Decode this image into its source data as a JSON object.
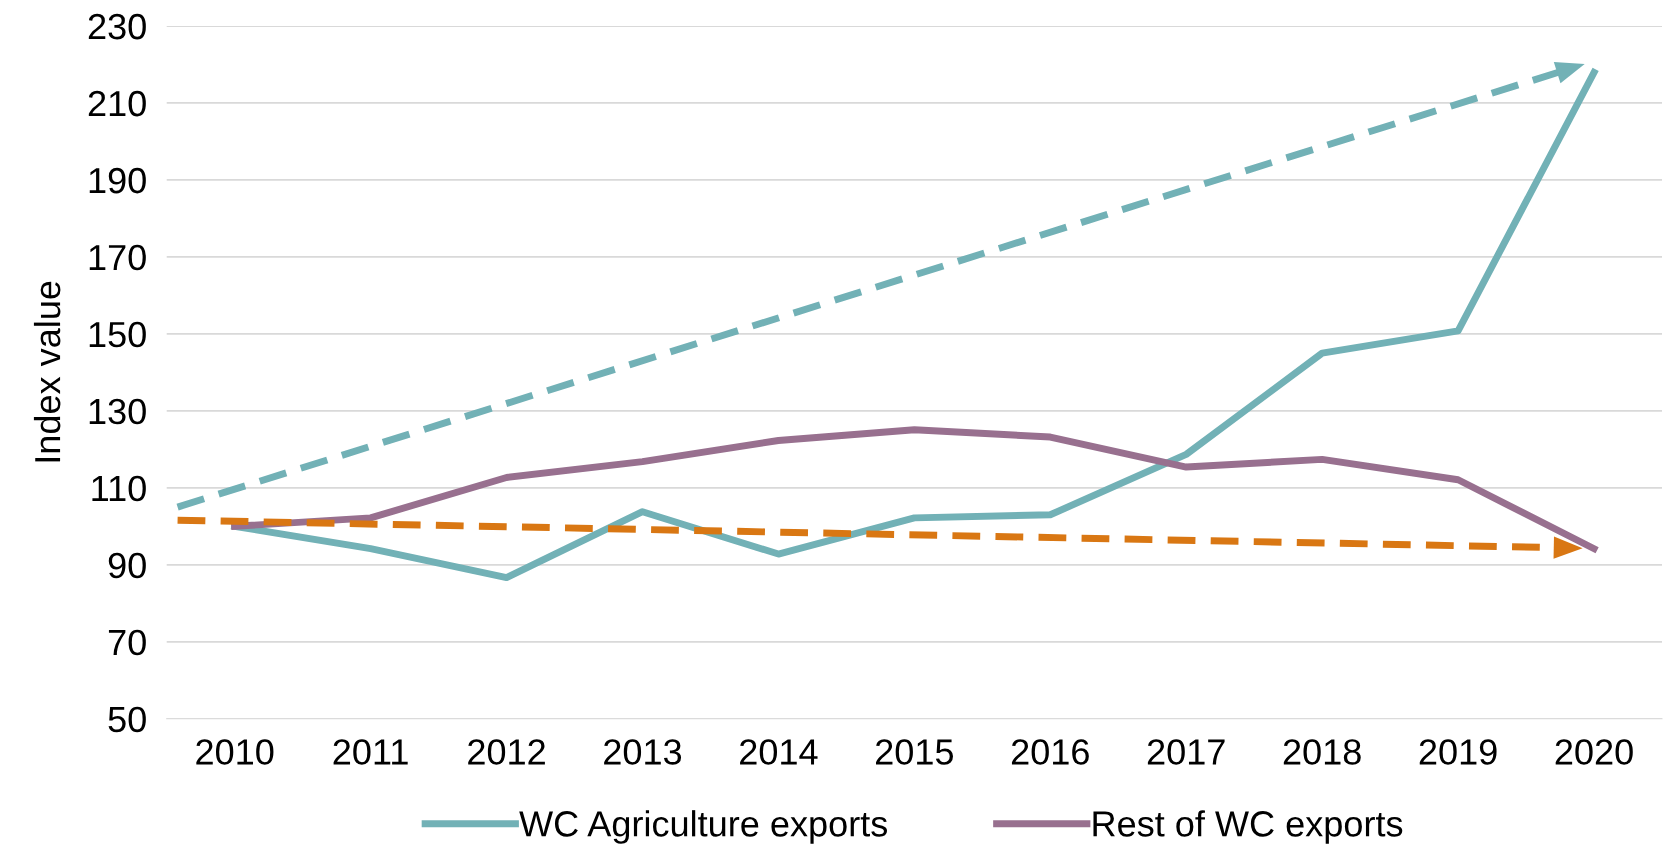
{
  "chart_data": {
    "type": "line",
    "ylabel": "Index value",
    "x": [
      2010,
      2011,
      2012,
      2013,
      2014,
      2015,
      2016,
      2017,
      2018,
      2019,
      2020
    ],
    "xlim": [
      2009.5,
      2020.5
    ],
    "xticks": [
      2010,
      2011,
      2012,
      2013,
      2014,
      2015,
      2016,
      2017,
      2018,
      2019,
      2020
    ],
    "ylim": [
      50,
      230
    ],
    "yticks": [
      50,
      70,
      90,
      110,
      130,
      150,
      170,
      190,
      210,
      230
    ],
    "grid": "y",
    "legend": "bottom",
    "marker": "none",
    "series": [
      {
        "name": "WC Agriculture exports",
        "color": "#72b1b6",
        "values": [
          100,
          94.2,
          86.7,
          103.8,
          92.8,
          102.2,
          103,
          118.7,
          145,
          150.8,
          217.9
        ]
      },
      {
        "name": "Rest of WC exports",
        "color": "#98708f",
        "values": [
          100,
          102.2,
          112.7,
          116.8,
          122.3,
          125.1,
          123.2,
          115.4,
          117.4,
          112.1,
          94.2
        ]
      },
      {
        "type": "line",
        "line_style": "dashed",
        "marker": "triangle",
        "color": "#72b1b6",
        "x": [
          2009.58,
          2019.83
        ],
        "values": [
          105,
          219
        ]
      },
      {
        "type": "line",
        "line_style": "dashed",
        "marker": "triangle",
        "color": "#d97713",
        "x": [
          2009.58,
          2019.81
        ],
        "values": [
          101.6,
          94.4
        ]
      }
    ]
  }
}
